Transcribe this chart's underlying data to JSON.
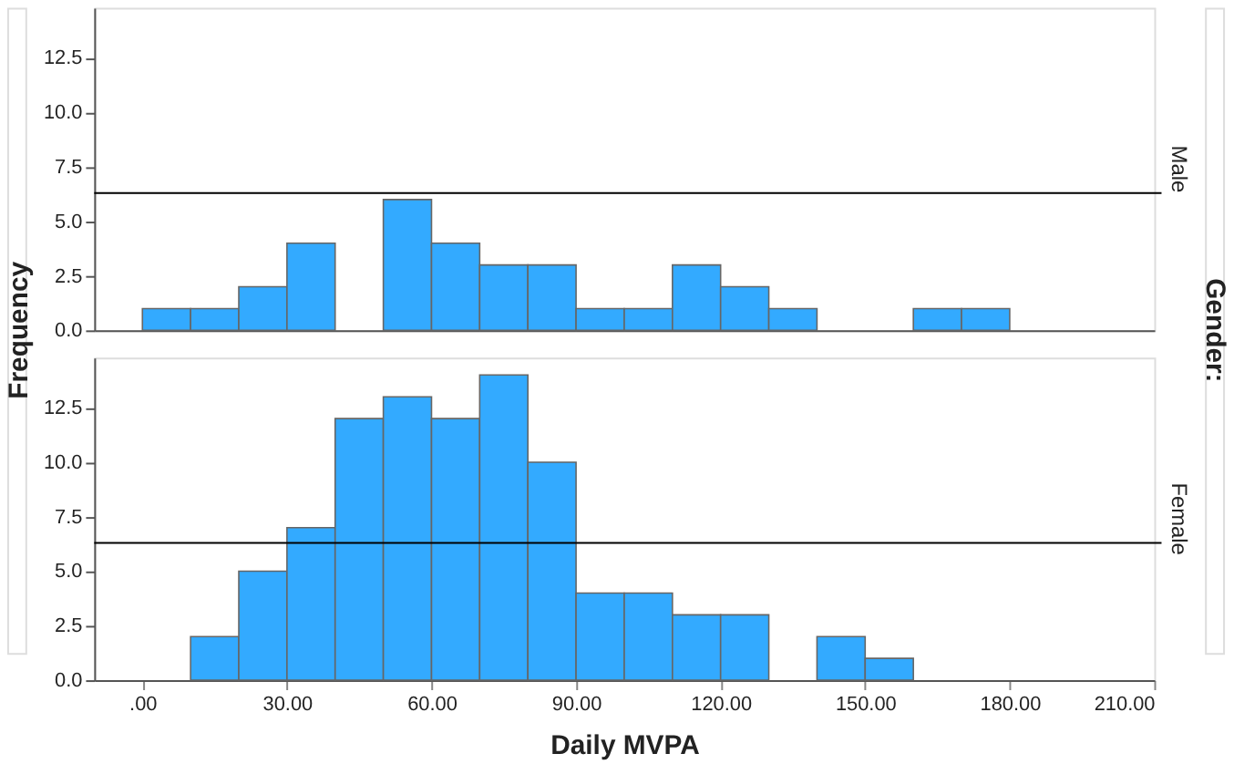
{
  "chart_data": [
    {
      "type": "histogram",
      "ylabel": "Frequency",
      "y2label": "Male",
      "annotations": [
        "Gender:"
      ],
      "bins": [
        0,
        10,
        20,
        30,
        40,
        50,
        60,
        70,
        80,
        90,
        100,
        110,
        120,
        130,
        140,
        150,
        160,
        170,
        180
      ],
      "values": [
        1,
        1,
        2,
        4,
        0,
        6,
        4,
        3,
        3,
        1,
        1,
        3,
        2,
        1,
        0,
        0,
        1,
        1
      ],
      "color": "#33aaff",
      "xlim": [
        -10,
        210
      ],
      "ylim": [
        0,
        14.8
      ],
      "yticks": [
        {
          "value": 0,
          "label": "0.0"
        },
        {
          "value": 2.5,
          "label": "2.5"
        },
        {
          "value": 5,
          "label": "5.0"
        },
        {
          "value": 7.5,
          "label": "7.5"
        },
        {
          "value": 10,
          "label": "10.0"
        },
        {
          "value": 12.5,
          "label": "12.5"
        }
      ],
      "tick_labels": "y",
      "ref_lines": [
        {
          "axis": "y",
          "value": 6.3,
          "color": "#000000"
        }
      ],
      "grid": false
    },
    {
      "type": "histogram",
      "xlabel": "Daily MVPA",
      "y2label": "Female",
      "bins": [
        10,
        20,
        30,
        40,
        50,
        60,
        70,
        80,
        90,
        100,
        110,
        120,
        130,
        140,
        150,
        160
      ],
      "values": [
        2,
        5,
        7,
        12,
        13,
        12,
        14,
        10,
        4,
        4,
        3,
        3,
        0,
        2,
        1
      ],
      "color": "#33aaff",
      "xlim": [
        -10,
        210
      ],
      "ylim": [
        0,
        14.8
      ],
      "xticks": [
        {
          "value": 0,
          "label": ".00"
        },
        {
          "value": 30,
          "label": "30.00"
        },
        {
          "value": 60,
          "label": "60.00"
        },
        {
          "value": 90,
          "label": "90.00"
        },
        {
          "value": 120,
          "label": "120.00"
        },
        {
          "value": 150,
          "label": "150.00"
        },
        {
          "value": 180,
          "label": "180.00"
        },
        {
          "value": 210,
          "label": "210.00"
        }
      ],
      "yticks": [
        {
          "value": 0,
          "label": "0.0"
        },
        {
          "value": 2.5,
          "label": "2.5"
        },
        {
          "value": 5,
          "label": "5.0"
        },
        {
          "value": 7.5,
          "label": "7.5"
        },
        {
          "value": 10,
          "label": "10.0"
        },
        {
          "value": 12.5,
          "label": "12.5"
        }
      ],
      "ref_lines": [
        {
          "axis": "y",
          "value": 6.3,
          "color": "#000000"
        }
      ],
      "grid": false
    }
  ]
}
